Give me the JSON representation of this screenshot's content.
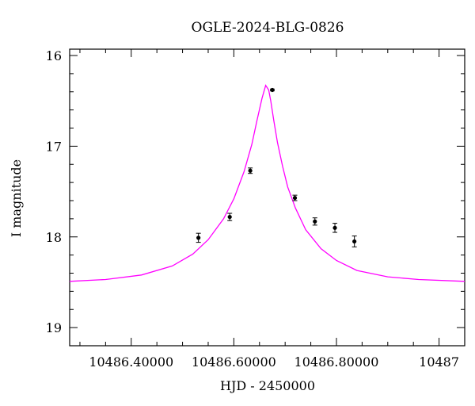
{
  "chart_data": {
    "type": "scatter",
    "title": "OGLE-2024-BLG-0826",
    "xlabel": "HJD - 2450000",
    "ylabel": "I magnitude",
    "xlim": [
      10486.28,
      10487.05
    ],
    "ylim": [
      19.2,
      15.93
    ],
    "y_inverted": true,
    "x_tick_labels": [
      "10486.40000",
      "10486.60000",
      "10486.80000",
      "10487"
    ],
    "x_ticks": [
      10486.4,
      10486.6,
      10486.8,
      10487.0
    ],
    "y_tick_labels": [
      "16",
      "17",
      "18",
      "19"
    ],
    "y_ticks": [
      16,
      17,
      18,
      19
    ],
    "grid": false,
    "series": [
      {
        "kind": "points",
        "color": "#000000",
        "x": [
          10486.531,
          10486.592,
          10486.632,
          10486.675,
          10486.719,
          10486.758,
          10486.797,
          10486.835
        ],
        "y": [
          18.01,
          17.78,
          17.27,
          16.38,
          17.57,
          17.83,
          17.9,
          18.05
        ],
        "err": [
          0.05,
          0.04,
          0.03,
          0.01,
          0.03,
          0.04,
          0.05,
          0.06
        ]
      },
      {
        "kind": "model",
        "color": "#ff00ff",
        "x": [
          10486.28,
          10486.35,
          10486.42,
          10486.48,
          10486.52,
          10486.55,
          10486.58,
          10486.6,
          10486.62,
          10486.635,
          10486.645,
          10486.655,
          10486.662,
          10486.668,
          10486.672,
          10486.678,
          10486.685,
          10486.695,
          10486.705,
          10486.72,
          10486.74,
          10486.77,
          10486.8,
          10486.84,
          10486.9,
          10486.96,
          10487.05
        ],
        "y": [
          18.49,
          18.47,
          18.42,
          18.32,
          18.19,
          18.03,
          17.8,
          17.58,
          17.28,
          16.98,
          16.72,
          16.47,
          16.33,
          16.38,
          16.5,
          16.72,
          16.96,
          17.22,
          17.45,
          17.68,
          17.92,
          18.13,
          18.26,
          18.37,
          18.44,
          18.47,
          18.49
        ]
      }
    ]
  }
}
